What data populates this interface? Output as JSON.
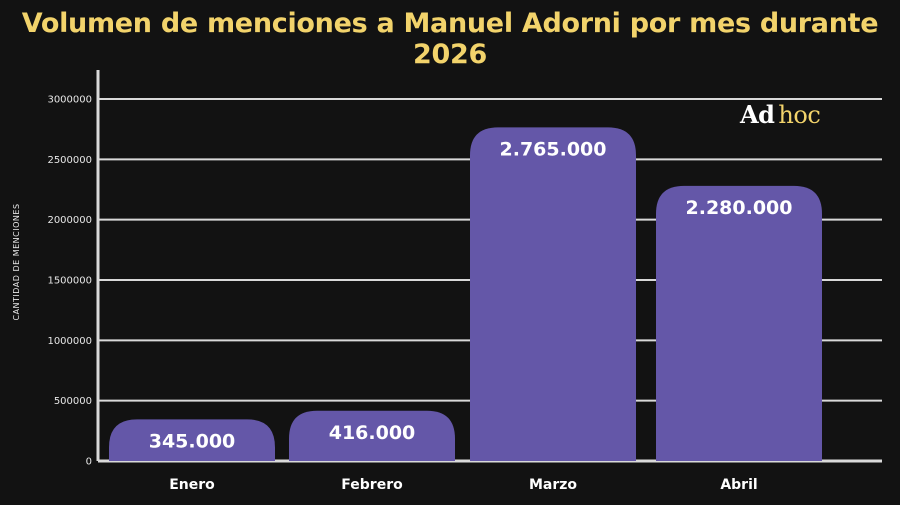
{
  "chart_data": {
    "type": "bar",
    "title": "Volumen de menciones a Manuel Adorni por mes durante 2026",
    "ylabel": "CANTIDAD DE MENCIONES",
    "xlabel": "",
    "categories": [
      "Enero",
      "Febrero",
      "Marzo",
      "Abril"
    ],
    "values": [
      345000,
      416000,
      2765000,
      2280000
    ],
    "data_labels": [
      "345.000",
      "416.000",
      "2.765.000",
      "2.280.000"
    ],
    "ylim": [
      0,
      3000000
    ],
    "yticks": [
      0,
      500000,
      1000000,
      1500000,
      2000000,
      2500000,
      3000000
    ],
    "ytick_labels": [
      "0",
      "500000",
      "1000000",
      "1500000",
      "2000000",
      "2500000",
      "3000000"
    ],
    "grid": true,
    "bar_color": "#6457a8",
    "grid_color": "#d9d9d9",
    "title_color": "#f2d36b",
    "background": "#121212"
  },
  "brand": {
    "part1": "Ad",
    "part2": "hoc"
  }
}
